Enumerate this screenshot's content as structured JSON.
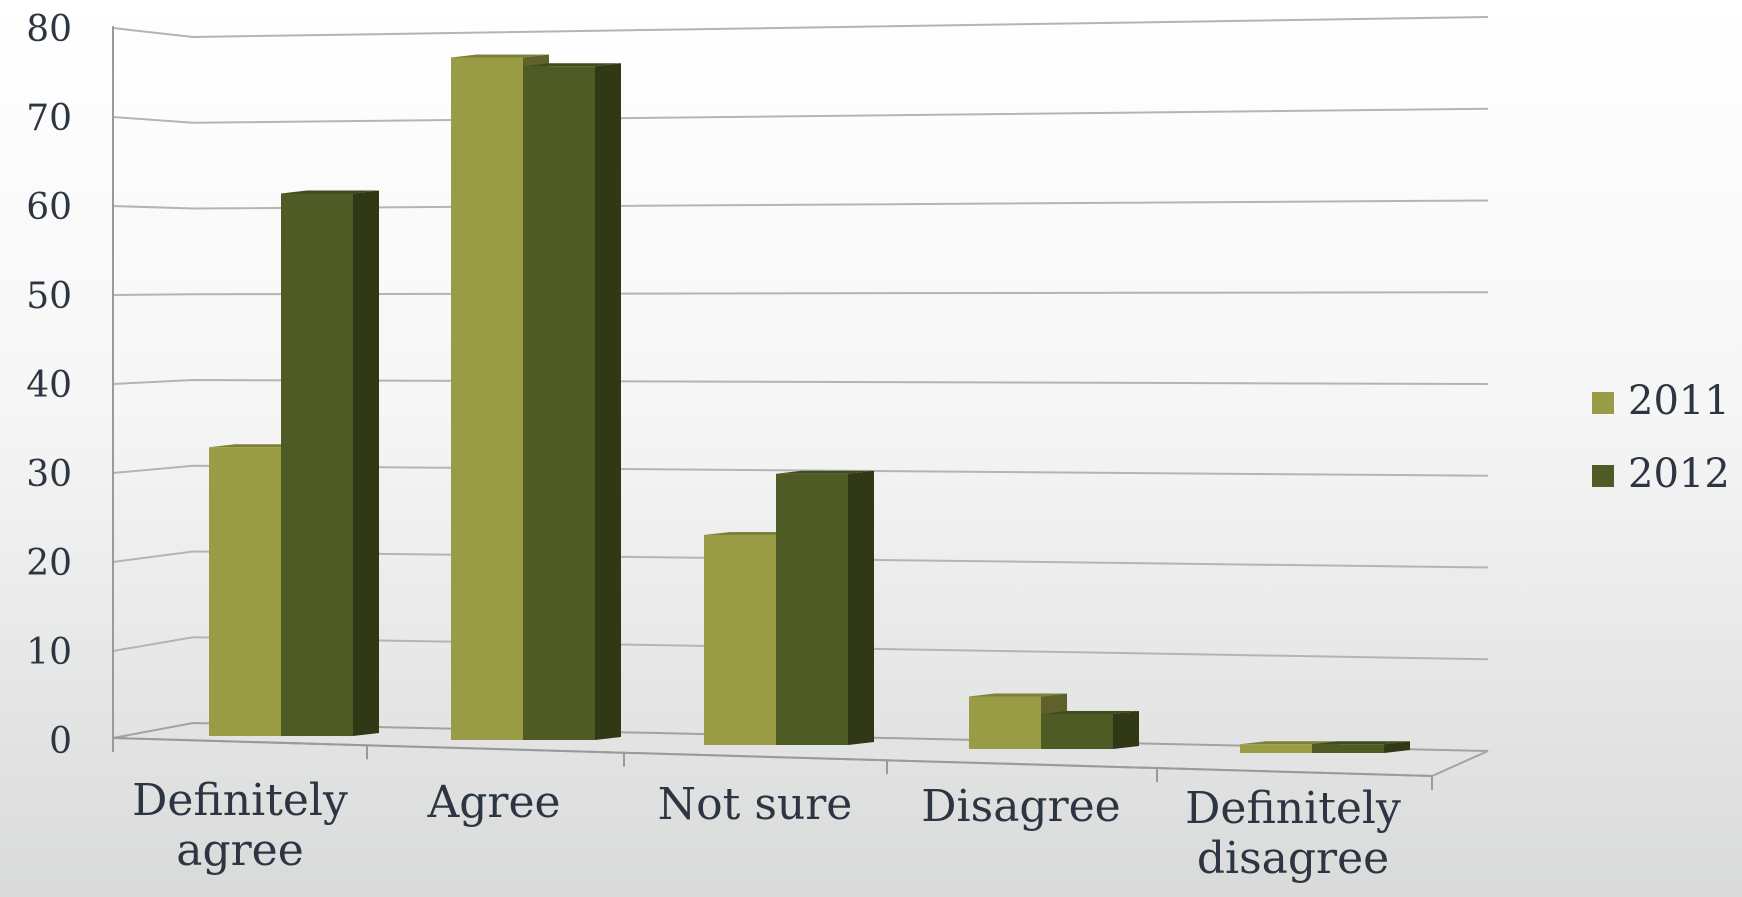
{
  "chart_data": {
    "type": "bar",
    "title": "",
    "xlabel": "",
    "ylabel": "",
    "categories": [
      "Definitely agree",
      "Agree",
      "Not sure",
      "Disagree",
      "Definitely disagree"
    ],
    "category_lines": [
      [
        "Definitely",
        "agree"
      ],
      [
        "Agree"
      ],
      [
        "Not sure"
      ],
      [
        "Disagree"
      ],
      [
        "Definitely",
        "disagree"
      ]
    ],
    "series": [
      {
        "name": "2011",
        "values": [
          33,
          78,
          24,
          6,
          1
        ],
        "color": "#999c45"
      },
      {
        "name": "2012",
        "values": [
          62,
          77,
          31,
          4,
          1
        ],
        "color": "#4f5b24"
      }
    ],
    "ylim": [
      0,
      80
    ],
    "yticks": [
      0,
      10,
      20,
      30,
      40,
      50,
      60,
      70,
      80
    ],
    "grid": true,
    "style": "3d-clustered-column",
    "legend": {
      "position": "right",
      "entries": [
        "2011",
        "2012"
      ]
    }
  }
}
